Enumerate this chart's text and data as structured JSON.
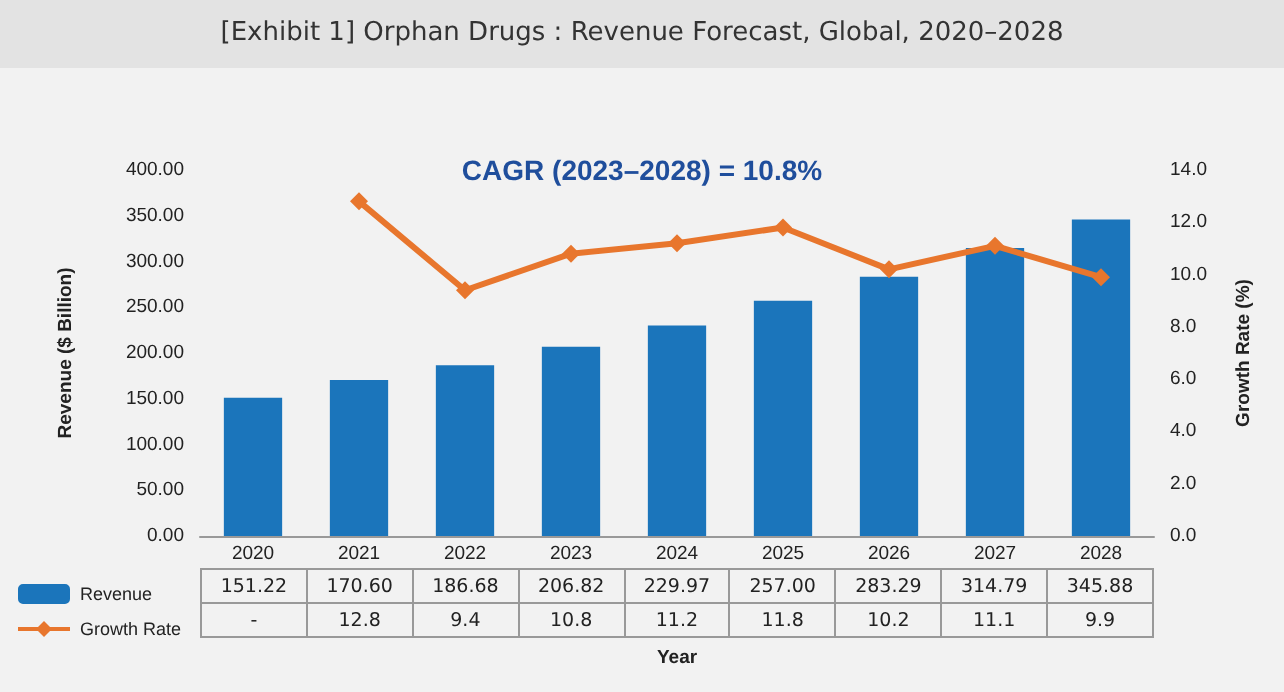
{
  "chart_data": {
    "type": "bar",
    "title": "[Exhibit 1] Orphan Drugs : Revenue Forecast, Global, 2020–2028",
    "xlabel": "Year",
    "ylabel": "Revenue ($ Billion)",
    "y2label": "Growth Rate (%)",
    "annotations": [
      "CAGR (2023–2028) = 10.8%"
    ],
    "categories": [
      "2020",
      "2021",
      "2022",
      "2023",
      "2024",
      "2025",
      "2026",
      "2027",
      "2028"
    ],
    "series": [
      {
        "name": "Revenue",
        "color": "#1b75bb",
        "values": [
          151.22,
          170.6,
          186.68,
          206.82,
          229.97,
          257.0,
          283.29,
          314.79,
          345.88
        ],
        "value_labels": [
          "151.22",
          "170.60",
          "186.68",
          "206.82",
          "229.97",
          "257.00",
          "283.29",
          "314.79",
          "345.88"
        ]
      },
      {
        "name": "Growth Rate",
        "type": "line",
        "axis": "y2",
        "marker": "diamond",
        "color": "#e8762d",
        "values": [
          null,
          12.8,
          9.4,
          10.8,
          11.2,
          11.8,
          10.2,
          11.1,
          9.9
        ],
        "value_labels": [
          "-",
          "12.8",
          "9.4",
          "10.8",
          "11.2",
          "11.8",
          "10.2",
          "11.1",
          "9.9"
        ]
      }
    ],
    "ylim": [
      0,
      400
    ],
    "yticks": [
      {
        "value": 0,
        "label": "0.00"
      },
      {
        "value": 50,
        "label": "50.00"
      },
      {
        "value": 100,
        "label": "100.00"
      },
      {
        "value": 150,
        "label": "150.00"
      },
      {
        "value": 200,
        "label": "200.00"
      },
      {
        "value": 250,
        "label": "250.00"
      },
      {
        "value": 300,
        "label": "300.00"
      },
      {
        "value": 350,
        "label": "350.00"
      },
      {
        "value": 400,
        "label": "400.00"
      }
    ],
    "y2lim": [
      0,
      14
    ],
    "y2ticks": [
      {
        "value": 0,
        "label": "0.0"
      },
      {
        "value": 2,
        "label": "2.0"
      },
      {
        "value": 4,
        "label": "4.0"
      },
      {
        "value": 6,
        "label": "6.0"
      },
      {
        "value": 8,
        "label": "8.0"
      },
      {
        "value": 10,
        "label": "10.0"
      },
      {
        "value": 12,
        "label": "12.0"
      },
      {
        "value": 14,
        "label": "14.0"
      }
    ],
    "legend": "bottom left"
  }
}
